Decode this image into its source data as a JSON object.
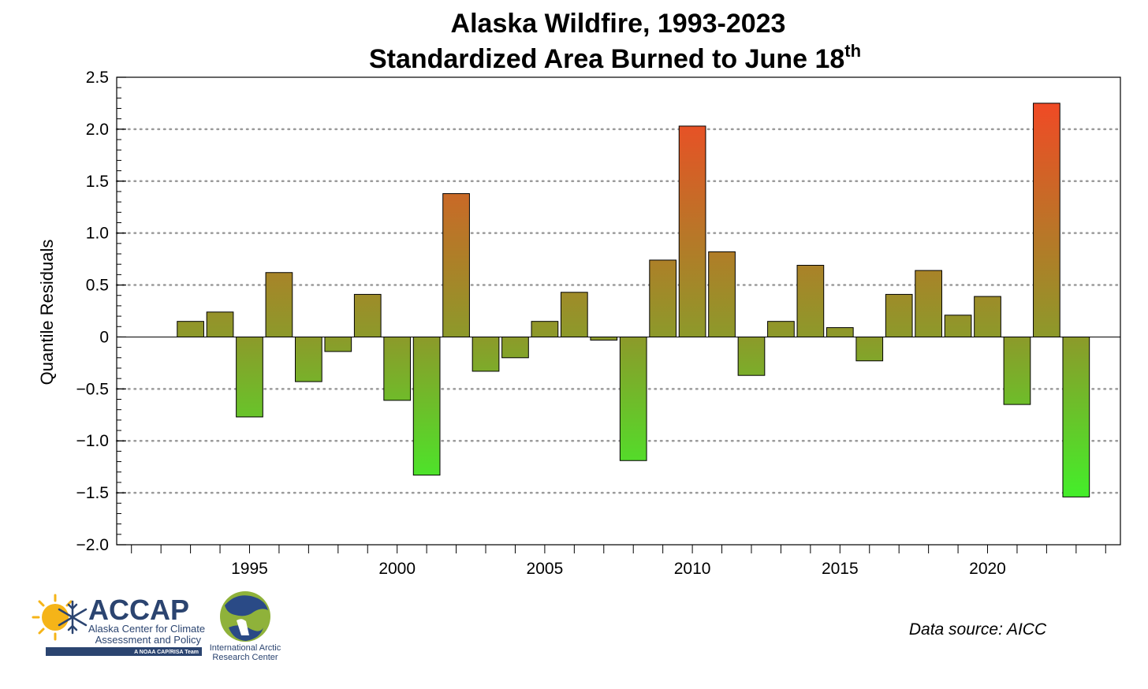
{
  "chart_data": {
    "type": "bar",
    "title": "Alaska Wildfire, 1993-2023",
    "subtitle": "Standardized Area Burned to June 18",
    "subtitle_superscript": "th",
    "xlabel": "",
    "ylabel": "Quantile Residuals",
    "ylim": [
      -2.0,
      2.5
    ],
    "xlim": [
      1990.5,
      2024.5
    ],
    "y_ticks": [
      -2.0,
      -1.5,
      -1.0,
      -0.5,
      0,
      0.5,
      1.0,
      1.5,
      2.0,
      2.5
    ],
    "y_tick_labels": [
      "−2.0",
      "−1.5",
      "−1.0",
      "−0.5",
      "0",
      "0.5",
      "1.0",
      "1.5",
      "2.0",
      "2.5"
    ],
    "x_ticks": [
      1995,
      2000,
      2005,
      2010,
      2015,
      2020
    ],
    "x_tick_labels": [
      "1995",
      "2000",
      "2005",
      "2010",
      "2015",
      "2020"
    ],
    "gridlines": [
      -1.5,
      -1.0,
      -0.5,
      0.5,
      1.0,
      1.5,
      2.0
    ],
    "grid": true,
    "grid_style": "dotted horizontal",
    "color_scale": {
      "low": "#44ee2a",
      "mid": "#8c9a2a",
      "high": "#f04a25"
    },
    "years": [
      1993,
      1994,
      1995,
      1996,
      1997,
      1998,
      1999,
      2000,
      2001,
      2002,
      2003,
      2004,
      2005,
      2006,
      2007,
      2008,
      2009,
      2010,
      2011,
      2012,
      2013,
      2014,
      2015,
      2016,
      2017,
      2018,
      2019,
      2020,
      2021,
      2022,
      2023
    ],
    "values": [
      0.15,
      0.24,
      -0.77,
      0.62,
      -0.43,
      -0.14,
      0.41,
      -0.61,
      -1.33,
      1.38,
      -0.33,
      -0.2,
      0.15,
      0.43,
      -0.03,
      -1.19,
      0.74,
      2.03,
      0.82,
      -0.37,
      0.15,
      0.69,
      0.09,
      -0.23,
      0.41,
      0.64,
      0.21,
      0.39,
      -0.65,
      2.25,
      -1.54
    ]
  },
  "source_note": "Data source: AICC",
  "logos": {
    "accap_name": "ACCAP",
    "accap_line1": "Alaska Center for Climate",
    "accap_line2": "Assessment and Policy",
    "accap_tagline": "A NOAA CAP/RISA Team",
    "iarc_line1": "International Arctic",
    "iarc_line2": "Research Center"
  }
}
